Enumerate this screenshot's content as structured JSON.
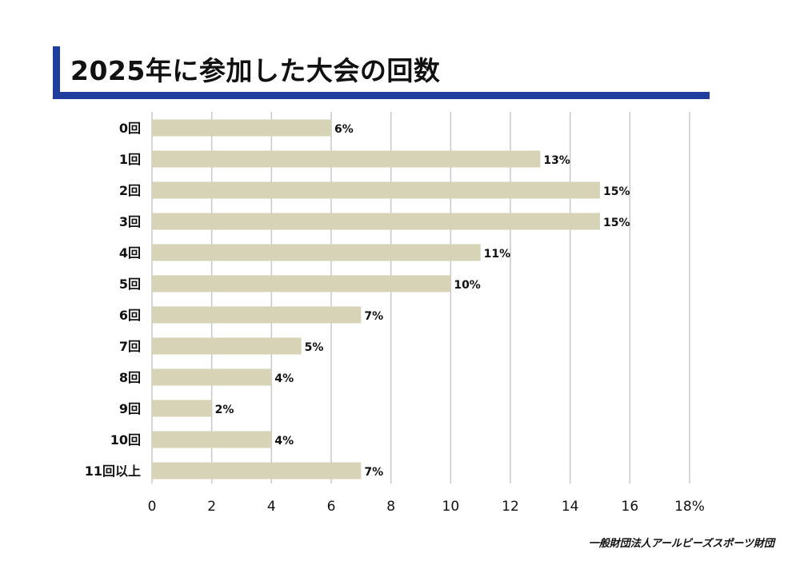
{
  "title": "2025年に参加した大会の回数",
  "footer": "一般財団法人アールビーズスポーツ財団",
  "colors": {
    "accent": "#1f3d9c",
    "bar": "#d6d3b7",
    "grid": "#c8c8c8"
  },
  "chart_data": {
    "type": "bar",
    "orientation": "horizontal",
    "title": "2025年に参加した大会の回数",
    "categories": [
      "0回",
      "1回",
      "2回",
      "3回",
      "4回",
      "5回",
      "6回",
      "7回",
      "8回",
      "9回",
      "10回",
      "11回以上"
    ],
    "values": [
      6,
      13,
      15,
      15,
      11,
      10,
      7,
      5,
      4,
      2,
      4,
      7
    ],
    "data_labels": [
      "6%",
      "13%",
      "15%",
      "15%",
      "11%",
      "10%",
      "7%",
      "5%",
      "4%",
      "2%",
      "4%",
      "7%"
    ],
    "x_ticks": [
      "0",
      "2",
      "4",
      "6",
      "8",
      "10",
      "12",
      "14",
      "16",
      "18%"
    ],
    "xlim": [
      0,
      18
    ],
    "grid": true
  }
}
